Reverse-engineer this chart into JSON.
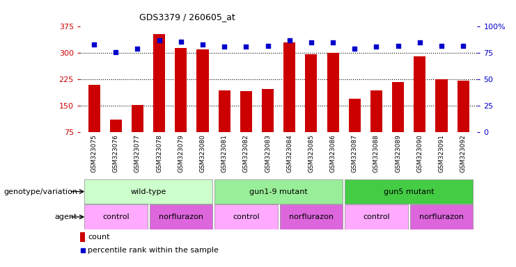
{
  "title": "GDS3379 / 260605_at",
  "samples": [
    "GSM323075",
    "GSM323076",
    "GSM323077",
    "GSM323078",
    "GSM323079",
    "GSM323080",
    "GSM323081",
    "GSM323082",
    "GSM323083",
    "GSM323084",
    "GSM323085",
    "GSM323086",
    "GSM323087",
    "GSM323088",
    "GSM323089",
    "GSM323090",
    "GSM323091",
    "GSM323092"
  ],
  "counts": [
    210,
    110,
    153,
    355,
    315,
    310,
    193,
    192,
    197,
    330,
    297,
    300,
    170,
    193,
    218,
    291,
    226,
    222
  ],
  "percentiles": [
    83,
    76,
    79,
    87,
    86,
    83,
    81,
    81,
    82,
    87,
    85,
    85,
    79,
    81,
    82,
    85,
    82,
    82
  ],
  "bar_color": "#cc0000",
  "dot_color": "#0000cc",
  "ylim_left": [
    75,
    375
  ],
  "ylim_right": [
    0,
    100
  ],
  "yticks_left": [
    75,
    150,
    225,
    300,
    375
  ],
  "yticks_right": [
    0,
    25,
    50,
    75,
    100
  ],
  "yticklabels_right": [
    "0",
    "25",
    "50",
    "75",
    "100%"
  ],
  "grid_values": [
    150,
    225,
    300
  ],
  "background_color": "#ffffff",
  "genotype_groups": [
    {
      "label": "wild-type",
      "start": 0,
      "end": 5,
      "color": "#ccffcc"
    },
    {
      "label": "gun1-9 mutant",
      "start": 6,
      "end": 11,
      "color": "#99ee99"
    },
    {
      "label": "gun5 mutant",
      "start": 12,
      "end": 17,
      "color": "#44cc44"
    }
  ],
  "agent_groups": [
    {
      "label": "control",
      "start": 0,
      "end": 2,
      "color": "#ffaaff"
    },
    {
      "label": "norflurazon",
      "start": 3,
      "end": 5,
      "color": "#dd66dd"
    },
    {
      "label": "control",
      "start": 6,
      "end": 8,
      "color": "#ffaaff"
    },
    {
      "label": "norflurazon",
      "start": 9,
      "end": 11,
      "color": "#dd66dd"
    },
    {
      "label": "control",
      "start": 12,
      "end": 14,
      "color": "#ffaaff"
    },
    {
      "label": "norflurazon",
      "start": 15,
      "end": 17,
      "color": "#dd66dd"
    }
  ],
  "genotype_label": "genotype/variation",
  "agent_label": "agent",
  "legend_count_color": "#cc0000",
  "legend_dot_color": "#0000cc",
  "legend_count_text": "count",
  "legend_dot_text": "percentile rank within the sample",
  "xlim": [
    -0.65,
    17.65
  ]
}
